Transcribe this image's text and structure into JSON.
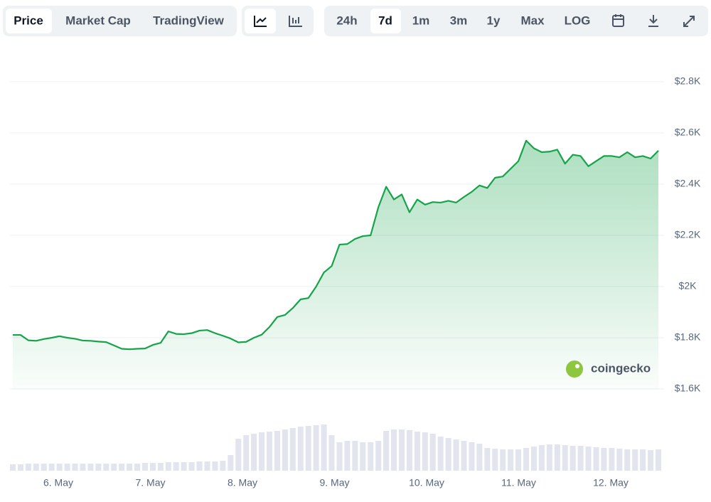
{
  "toolbar": {
    "views": [
      "Price",
      "Market Cap",
      "TradingView"
    ],
    "ranges": [
      "24h",
      "7d",
      "1m",
      "3m",
      "1y",
      "Max",
      "LOG"
    ]
  },
  "logo": "coingecko",
  "chart_data": {
    "type": "line",
    "x_labels": [
      "6. May",
      "7. May",
      "8. May",
      "9. May",
      "10. May",
      "11. May",
      "12. May"
    ],
    "series": [
      {
        "name": "Price",
        "color": "#16a34a",
        "values": [
          1811,
          1811,
          1790,
          1788,
          1795,
          1800,
          1806,
          1800,
          1796,
          1789,
          1788,
          1785,
          1783,
          1770,
          1757,
          1755,
          1757,
          1758,
          1772,
          1780,
          1825,
          1815,
          1814,
          1818,
          1828,
          1830,
          1818,
          1808,
          1797,
          1782,
          1784,
          1800,
          1812,
          1842,
          1881,
          1889,
          1916,
          1950,
          1955,
          2000,
          2055,
          2080,
          2164,
          2166,
          2186,
          2197,
          2200,
          2310,
          2390,
          2340,
          2360,
          2290,
          2340,
          2320,
          2330,
          2328,
          2335,
          2328,
          2350,
          2370,
          2395,
          2385,
          2425,
          2430,
          2460,
          2490,
          2570,
          2540,
          2525,
          2527,
          2535,
          2480,
          2515,
          2510,
          2470,
          2490,
          2510,
          2510,
          2505,
          2525,
          2505,
          2510,
          2500,
          2531
        ]
      }
    ],
    "volume": {
      "color": "#e2e5ee",
      "values": [
        9,
        9,
        10,
        10,
        10,
        10,
        10,
        10,
        10,
        10,
        10,
        10,
        10,
        10,
        10,
        10,
        10,
        11,
        11,
        11,
        12,
        12,
        12,
        12,
        13,
        13,
        13,
        14,
        22,
        45,
        50,
        52,
        54,
        55,
        56,
        58,
        60,
        62,
        63,
        64,
        65,
        50,
        40,
        42,
        42,
        40,
        40,
        42,
        56,
        58,
        58,
        57,
        55,
        54,
        52,
        48,
        46,
        44,
        42,
        40,
        38,
        32,
        31,
        30,
        30,
        30,
        32,
        34,
        36,
        37,
        37,
        36,
        35,
        35,
        34,
        33,
        32,
        32,
        31,
        30,
        30,
        30,
        29,
        30
      ]
    },
    "ylim": [
      1600,
      2800
    ],
    "yticks": [
      {
        "value": 1600,
        "label": "$1.6K"
      },
      {
        "value": 1800,
        "label": "$1.8K"
      },
      {
        "value": 2000,
        "label": "$2K"
      },
      {
        "value": 2200,
        "label": "$2.2K"
      },
      {
        "value": 2400,
        "label": "$2.4K"
      },
      {
        "value": 2600,
        "label": "$2.6K"
      },
      {
        "value": 2800,
        "label": "$2.8K"
      }
    ],
    "grid": true
  }
}
